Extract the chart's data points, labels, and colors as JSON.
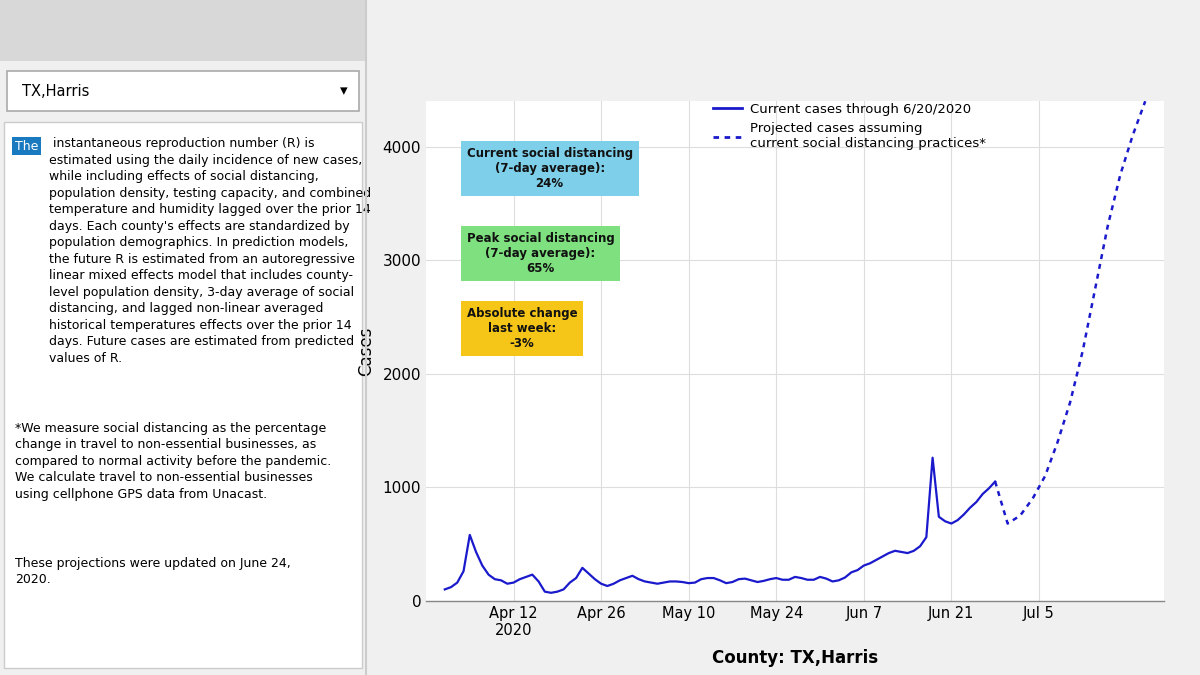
{
  "chart_bg": "#ffffff",
  "page_bg": "#f0f0f0",
  "left_bg": "#ffffff",
  "line_color": "#1a1acc",
  "title_x": "County: TX,Harris",
  "ylabel": "Cases",
  "yticks": [
    0,
    1000,
    2000,
    3000,
    4000
  ],
  "xtick_labels": [
    "Apr 12\n2020",
    "Apr 26",
    "May 10",
    "May 24",
    "Jun 7",
    "Jun 21",
    "Jul 5"
  ],
  "legend_solid": "Current cases through 6/20/2020",
  "legend_dashed": "Projected cases assuming\ncurrent social distancing practices*",
  "box1_title": "Current social distancing\n(7-day average):",
  "box1_val": "24%",
  "box1_color": "#7ecfea",
  "box2_title": "Peak social distancing\n(7-day average):",
  "box2_val": "65%",
  "box2_color": "#7ee07e",
  "box3_title": "Absolute change\nlast week:",
  "box3_val": "-3%",
  "box3_color": "#f5c518",
  "dropdown_text": "TX,Harris",
  "solid_x": [
    0,
    1,
    2,
    3,
    4,
    5,
    6,
    7,
    8,
    9,
    10,
    11,
    12,
    13,
    14,
    15,
    16,
    17,
    18,
    19,
    20,
    21,
    22,
    23,
    24,
    25,
    26,
    27,
    28,
    29,
    30,
    31,
    32,
    33,
    34,
    35,
    36,
    37,
    38,
    39,
    40,
    41,
    42,
    43,
    44,
    45,
    46,
    47,
    48,
    49,
    50,
    51,
    52,
    53,
    54,
    55,
    56,
    57,
    58,
    59,
    60,
    61,
    62,
    63,
    64,
    65,
    66,
    67,
    68,
    69,
    70,
    71,
    72,
    73,
    74,
    75,
    76,
    77,
    78,
    79,
    80,
    81,
    82,
    83,
    84,
    85,
    86,
    87,
    88
  ],
  "solid_y": [
    100,
    120,
    160,
    260,
    580,
    430,
    310,
    230,
    190,
    180,
    150,
    160,
    190,
    210,
    230,
    170,
    80,
    70,
    80,
    100,
    160,
    200,
    290,
    240,
    190,
    150,
    130,
    150,
    180,
    200,
    220,
    190,
    170,
    160,
    150,
    160,
    170,
    170,
    165,
    155,
    160,
    190,
    200,
    200,
    180,
    155,
    165,
    190,
    195,
    180,
    165,
    175,
    190,
    200,
    185,
    185,
    210,
    200,
    185,
    185,
    210,
    195,
    170,
    180,
    205,
    250,
    270,
    310,
    330,
    360,
    390,
    420,
    440,
    430,
    420,
    440,
    480,
    560,
    1260,
    740,
    700,
    680,
    710,
    760,
    820,
    870,
    940,
    990,
    1050
  ],
  "proj_x": [
    88,
    90,
    92,
    94,
    96,
    98,
    100,
    102,
    104,
    106,
    108,
    110,
    112
  ],
  "proj_y": [
    1050,
    680,
    750,
    900,
    1100,
    1400,
    1750,
    2200,
    2750,
    3300,
    3750,
    4100,
    4400
  ],
  "xmin": -3,
  "xmax": 115,
  "ymin": 0,
  "ymax": 4400
}
